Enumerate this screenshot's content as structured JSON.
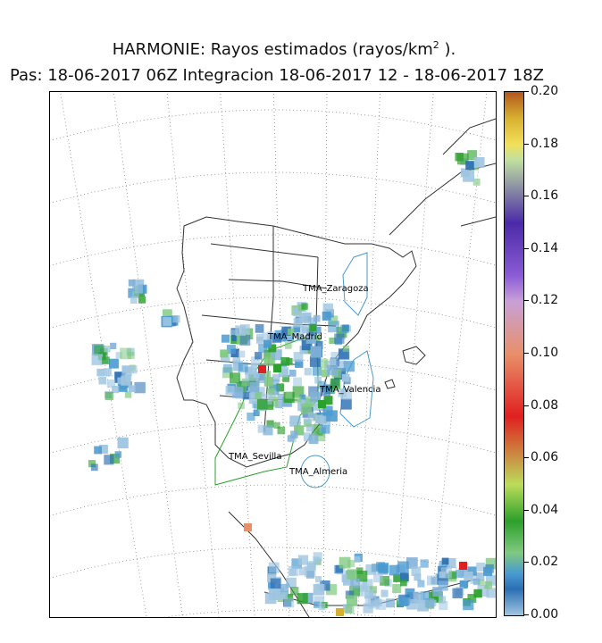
{
  "title": {
    "line1": "HARMONIE: Rayos estimados  (rayos/km",
    "superscript": "2",
    "line1_end": " ).",
    "line2": "Pas: 18-06-2017 06Z Integracion 18-06-2017 12 - 18-06-2017 18Z"
  },
  "tma_zones": [
    "TMA_Zaragoza",
    "TMA_Madrid",
    "TMA_Valencia",
    "TMA_Sevilla",
    "TMA_Almeria"
  ],
  "colorbar": {
    "min": 0.0,
    "max": 0.2,
    "ticks": [
      "0.00",
      "0.02",
      "0.04",
      "0.06",
      "0.08",
      "0.10",
      "0.12",
      "0.14",
      "0.16",
      "0.18",
      "0.20"
    ],
    "colors": [
      "#9fc5e0",
      "#2b6fb3",
      "#4a9ad0",
      "#7fc97f",
      "#2ca02c",
      "#bcdc5a",
      "#f2e05a",
      "#e6792b",
      "#e02020",
      "#e8906a",
      "#8a5bd6",
      "#4b2aa8",
      "#bfe0a0",
      "#d8b030",
      "#b2571d"
    ]
  }
}
